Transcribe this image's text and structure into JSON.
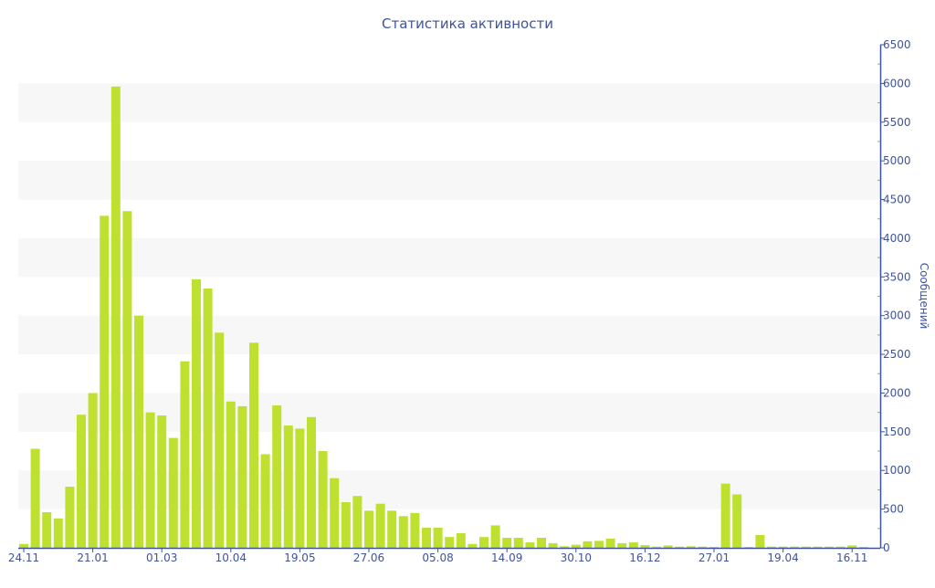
{
  "chart_data": {
    "type": "bar",
    "title": "Статистика активности",
    "xlabel": "",
    "ylabel": "Сообщений",
    "ylim": [
      0,
      6500
    ],
    "yticks": [
      0,
      500,
      1000,
      1500,
      2000,
      2500,
      3000,
      3500,
      4000,
      4500,
      5000,
      5500,
      6000,
      6500
    ],
    "xtick_labels": [
      {
        "bar": 0,
        "label": "24.11"
      },
      {
        "bar": 6,
        "label": "21.01"
      },
      {
        "bar": 12,
        "label": "01.03"
      },
      {
        "bar": 18,
        "label": "10.04"
      },
      {
        "bar": 24,
        "label": "19.05"
      },
      {
        "bar": 30,
        "label": "27.06"
      },
      {
        "bar": 36,
        "label": "05.08"
      },
      {
        "bar": 42,
        "label": "14.09"
      },
      {
        "bar": 48,
        "label": "30.10"
      },
      {
        "bar": 54,
        "label": "16.12"
      },
      {
        "bar": 60,
        "label": "27.01"
      },
      {
        "bar": 66,
        "label": "19.04"
      },
      {
        "bar": 72,
        "label": "16.11"
      }
    ],
    "values": [
      50,
      1280,
      460,
      380,
      790,
      1720,
      2000,
      4290,
      5960,
      4350,
      3000,
      1750,
      1710,
      1420,
      2410,
      3470,
      3350,
      2780,
      1890,
      1830,
      2650,
      1210,
      1840,
      1580,
      1540,
      1690,
      1250,
      900,
      590,
      670,
      480,
      570,
      480,
      410,
      450,
      260,
      260,
      140,
      190,
      50,
      140,
      290,
      130,
      130,
      70,
      130,
      60,
      20,
      40,
      85,
      90,
      120,
      60,
      70,
      35,
      15,
      30,
      15,
      20,
      15,
      10,
      830,
      690,
      10,
      165,
      15,
      15,
      15,
      15,
      15,
      15,
      15,
      30,
      10
    ],
    "bar_color": "#bde031",
    "axis_color": "#3f539c",
    "band_color": "#f7f7f7",
    "grid": "alternating horizontal bands",
    "legend": "none"
  }
}
